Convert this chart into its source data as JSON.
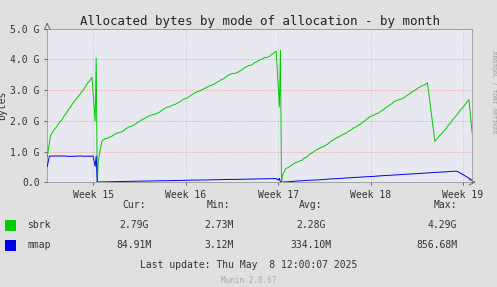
{
  "title": "Allocated bytes by mode of allocation - by month",
  "ylabel": "bytes",
  "bg_color": "#e0e0e0",
  "plot_bg_color": "#e8e8f0",
  "grid_color_h": "#ff9999",
  "grid_color_v": "#aaaacc",
  "ylim": [
    0,
    5000000000
  ],
  "yticks": [
    0,
    1000000000,
    2000000000,
    3000000000,
    4000000000,
    5000000000
  ],
  "ytick_labels": [
    "0.0",
    "1.0 G",
    "2.0 G",
    "3.0 G",
    "4.0 G",
    "5.0 G"
  ],
  "week_labels": [
    "Week 15",
    "Week 16",
    "Week 17",
    "Week 18",
    "Week 19"
  ],
  "sbrk_color": "#00cc00",
  "mmap_color": "#0000ee",
  "stats": {
    "cur_sbrk": "2.79G",
    "cur_mmap": "84.91M",
    "min_sbrk": "2.73M",
    "min_mmap": "3.12M",
    "avg_sbrk": "2.28G",
    "avg_mmap": "334.10M",
    "max_sbrk": "4.29G",
    "max_mmap": "856.68M"
  },
  "footer": "Last update: Thu May  8 12:00:07 2025",
  "munin_version": "Munin 2.0.67",
  "rrdtool_label": "RRDTOOL / TOBI OETIKER",
  "title_fontsize": 9,
  "tick_fontsize": 7,
  "label_fontsize": 7,
  "stats_fontsize": 7
}
